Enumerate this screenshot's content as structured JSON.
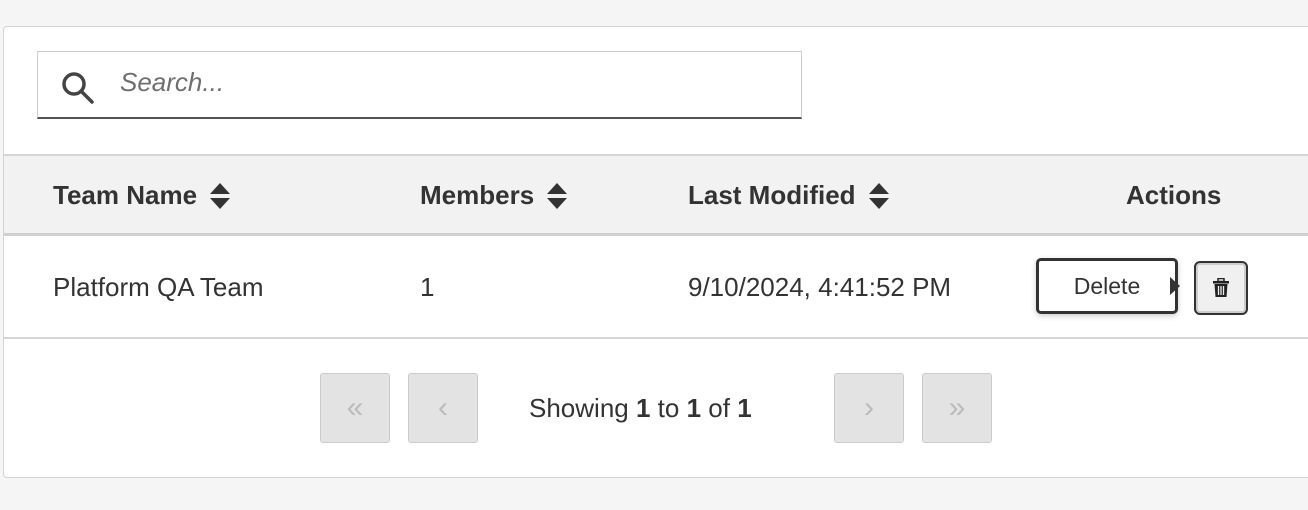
{
  "search": {
    "placeholder": "Search..."
  },
  "table": {
    "columns": [
      "Team Name",
      "Members",
      "Last Modified",
      "Actions"
    ],
    "rows": [
      {
        "team_name": "Platform QA Team",
        "members": "1",
        "last_modified": "9/10/2024, 4:41:52 PM"
      }
    ]
  },
  "actions": {
    "delete_tooltip": "Delete",
    "delete_icon": "trash-icon"
  },
  "pagination": {
    "first": "«",
    "prev": "‹",
    "next": "›",
    "last": "»",
    "showing_prefix": "Showing",
    "from": "1",
    "to_word": "to",
    "to": "1",
    "of_word": "of",
    "total": "1"
  }
}
